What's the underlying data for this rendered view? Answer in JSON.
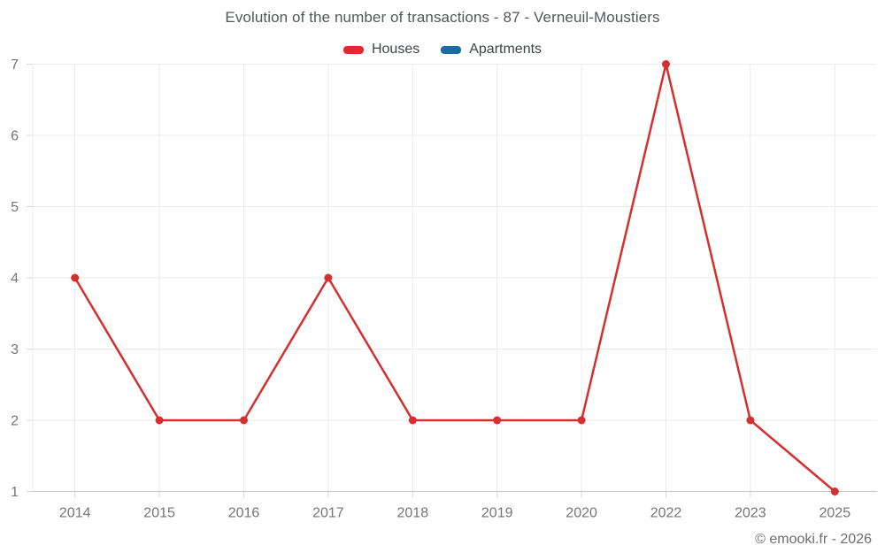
{
  "chart_data": {
    "type": "line",
    "title": "Evolution of the number of transactions - 87 - Verneuil-Moustiers",
    "categories": [
      "2014",
      "2015",
      "2016",
      "2017",
      "2018",
      "2019",
      "2020",
      "2022",
      "2023",
      "2025"
    ],
    "series": [
      {
        "name": "Houses",
        "color": "#d62f2f",
        "values": [
          4,
          2,
          2,
          4,
          2,
          2,
          2,
          7,
          2,
          1
        ]
      },
      {
        "name": "Apartments",
        "color": "#1a6d9d",
        "values": []
      }
    ],
    "xlabel": "",
    "ylabel": "",
    "ylim": [
      1,
      7
    ],
    "y_ticks": [
      1,
      2,
      3,
      4,
      5,
      6,
      7
    ],
    "grid": true,
    "legend_position": "top"
  },
  "footer": {
    "copyright": "© emooki.fr - 2026"
  }
}
